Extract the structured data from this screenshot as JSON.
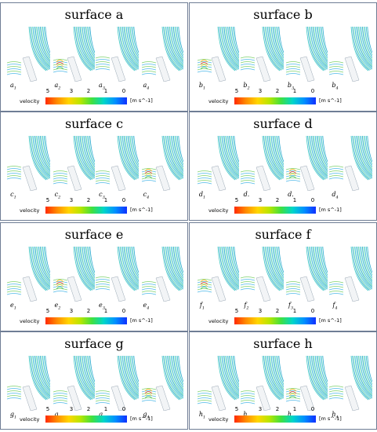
{
  "legend": {
    "ticks": [
      "5",
      "3",
      "2",
      "1",
      "0"
    ],
    "label": "velocity",
    "unit": "[m s^-1]"
  },
  "panels": [
    {
      "title": "surface a",
      "labels": [
        "a",
        "a",
        "a",
        "a"
      ],
      "subs": [
        "1",
        "2",
        "3",
        "4"
      ]
    },
    {
      "title": "surface b",
      "labels": [
        "b",
        "b",
        "b",
        "b"
      ],
      "subs": [
        "1",
        "2",
        "3",
        "4"
      ]
    },
    {
      "title": "surface c",
      "labels": [
        "c",
        "c",
        "c",
        "c"
      ],
      "subs": [
        "1",
        "2",
        "3",
        "4"
      ]
    },
    {
      "title": "surface d",
      "labels": [
        "d",
        "d.",
        "d.",
        "d"
      ],
      "subs": [
        "1",
        "",
        "",
        "4"
      ]
    },
    {
      "title": "surface e",
      "labels": [
        "e",
        "e",
        "e",
        "e"
      ],
      "subs": [
        "1",
        "2",
        "3",
        "4"
      ]
    },
    {
      "title": "surface f",
      "labels": [
        "f",
        "f",
        "f",
        "f"
      ],
      "subs": [
        "1",
        "2",
        "3",
        "4"
      ]
    },
    {
      "title": "surface g",
      "labels": [
        "g",
        "g",
        "g",
        "g"
      ],
      "subs": [
        "1",
        "2",
        "3",
        "4"
      ]
    },
    {
      "title": "surface h",
      "labels": [
        "h",
        "h",
        "h",
        "h"
      ],
      "subs": [
        "1",
        "2",
        "3",
        "4"
      ]
    }
  ],
  "colors": {
    "flow": "#3fc9c2",
    "flow_dark": "#2aa8d0",
    "border": "#6f7d95"
  }
}
